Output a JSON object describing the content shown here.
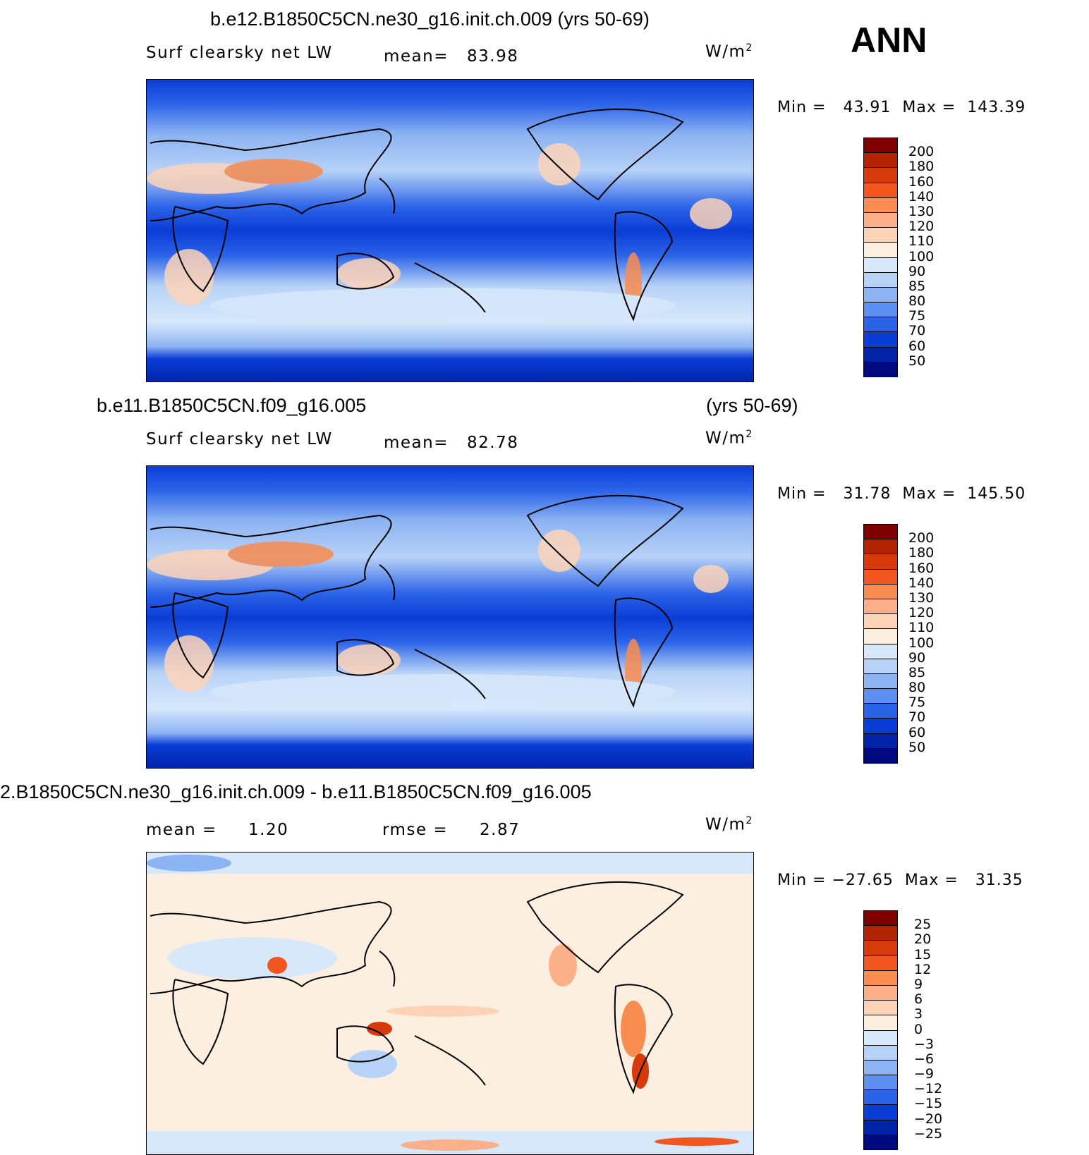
{
  "season": "ANN",
  "panels": [
    {
      "case_title": "b.e12.B1850C5CN.ne30_g16.init.ch.009 (yrs 50-69)",
      "case_years": "",
      "variable": "Surf clearsky net LW",
      "stat1_label": "mean=",
      "stat1_value": "83.98",
      "stat2_label": "",
      "stat2_value": "",
      "units_base": "W/m",
      "units_exp": "2",
      "minmax": "Min =   43.91  Max =  143.39",
      "colorbar_labels": [
        "200",
        "180",
        "160",
        "140",
        "130",
        "120",
        "110",
        "100",
        "90",
        "85",
        "80",
        "75",
        "70",
        "60",
        "50"
      ],
      "colors": [
        "#800000",
        "#b22400",
        "#d63a0a",
        "#f2561e",
        "#f98c50",
        "#fbb08a",
        "#fdd3b8",
        "#fdefe0",
        "#d7e8fb",
        "#b7d2f7",
        "#8cb3f2",
        "#5c8ff0",
        "#2b63e8",
        "#0a3dd6",
        "#0023a8",
        "#000a80"
      ]
    },
    {
      "case_title": "b.e11.B1850C5CN.f09_g16.005",
      "case_years": "(yrs 50-69)",
      "variable": "Surf clearsky net LW",
      "stat1_label": "mean=",
      "stat1_value": "82.78",
      "stat2_label": "",
      "stat2_value": "",
      "units_base": "W/m",
      "units_exp": "2",
      "minmax": "Min =   31.78  Max =  145.50",
      "colorbar_labels": [
        "200",
        "180",
        "160",
        "140",
        "130",
        "120",
        "110",
        "100",
        "90",
        "85",
        "80",
        "75",
        "70",
        "60",
        "50"
      ],
      "colors": [
        "#800000",
        "#b22400",
        "#d63a0a",
        "#f2561e",
        "#f98c50",
        "#fbb08a",
        "#fdd3b8",
        "#fdefe0",
        "#d7e8fb",
        "#b7d2f7",
        "#8cb3f2",
        "#5c8ff0",
        "#2b63e8",
        "#0a3dd6",
        "#0023a8",
        "#000a80"
      ]
    },
    {
      "case_title": "2.B1850C5CN.ne30_g16.init.ch.009 - b.e11.B1850C5CN.f09_g16.005",
      "case_years": "",
      "variable": "",
      "stat1_label": "mean =",
      "stat1_value": "1.20",
      "stat2_label": "rmse =",
      "stat2_value": "2.87",
      "units_base": "W/m",
      "units_exp": "2",
      "minmax": "Min = −27.65  Max =   31.35",
      "colorbar_labels": [
        "25",
        "20",
        "15",
        "12",
        "9",
        "6",
        "3",
        "0",
        "−3",
        "−6",
        "−9",
        "−12",
        "−15",
        "−20",
        "−25"
      ],
      "colors": [
        "#800000",
        "#b22400",
        "#d63a0a",
        "#f2561e",
        "#f98c50",
        "#fbb08a",
        "#fdd3b8",
        "#fdefe0",
        "#d7e8fb",
        "#b7d2f7",
        "#8cb3f2",
        "#5c8ff0",
        "#2b63e8",
        "#0a3dd6",
        "#0023a8",
        "#000a80"
      ]
    }
  ]
}
